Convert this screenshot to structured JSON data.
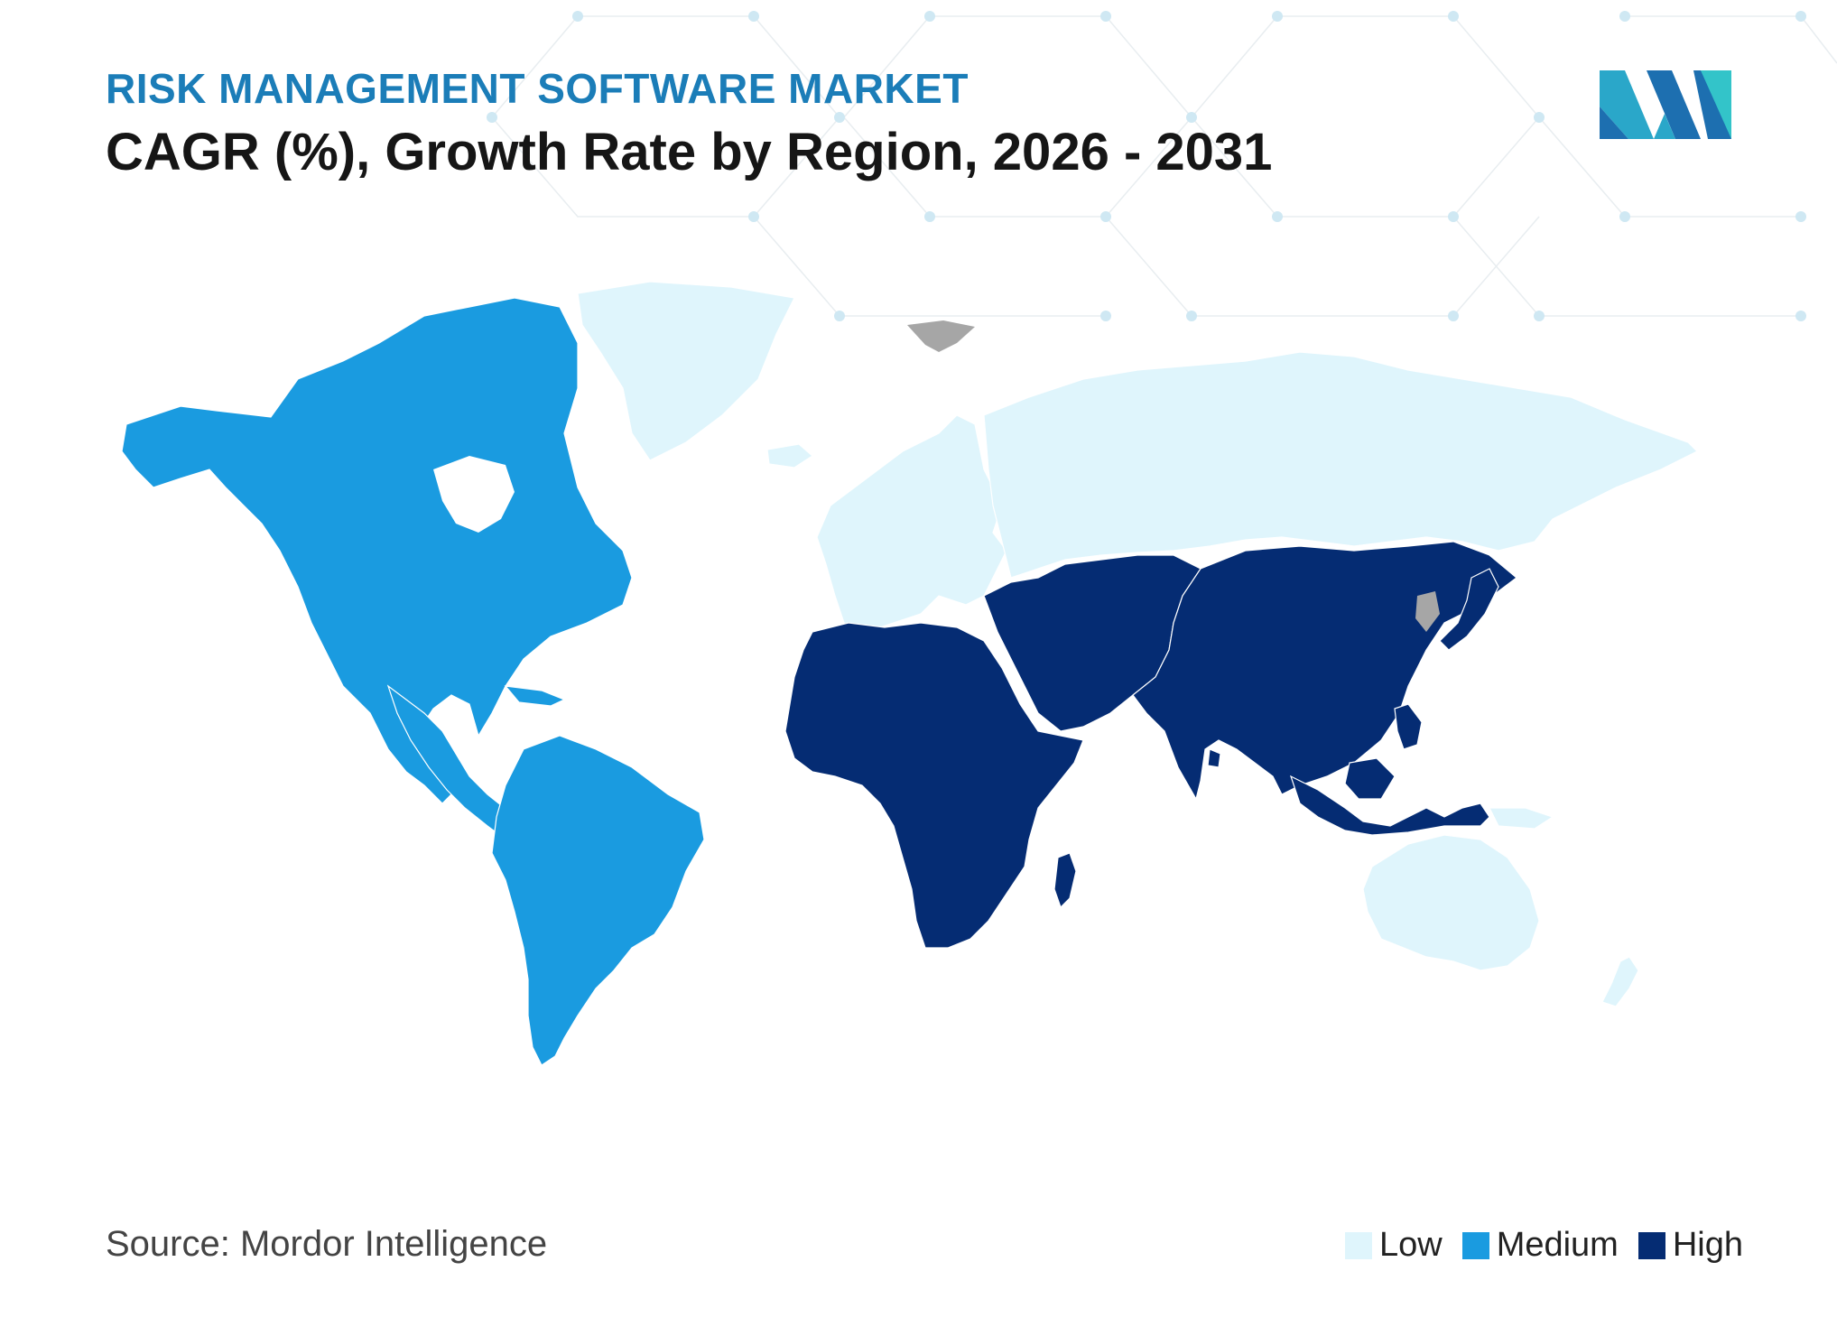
{
  "header": {
    "kicker": "RISK MANAGEMENT SOFTWARE MARKET",
    "title": "CAGR (%), Growth Rate by Region, 2026 - 2031"
  },
  "footer": {
    "source": "Source: Mordor Intelligence"
  },
  "legend": [
    {
      "label": "Low",
      "color": "#dff5fc"
    },
    {
      "label": "Medium",
      "color": "#1a9be0"
    },
    {
      "label": "High",
      "color": "#052c73"
    }
  ],
  "colors": {
    "low": "#dff5fc",
    "medium": "#1a9be0",
    "high": "#052c73",
    "no_data": "#a6a6a6",
    "title_accent": "#1b7db8"
  },
  "regions": {
    "north_america": "medium",
    "south_america": "medium",
    "europe": "low",
    "russia": "low",
    "greenland": "low",
    "middle_east": "high",
    "africa": "high",
    "asia": "high",
    "australia": "low"
  },
  "logo": {
    "icon": "mordor-intelligence-logo"
  }
}
